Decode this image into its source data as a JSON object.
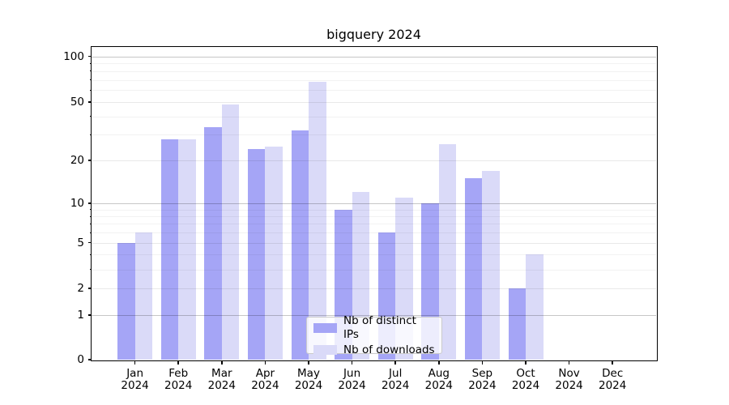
{
  "figure": {
    "background": "#ffffff"
  },
  "chart_data": {
    "type": "bar",
    "title": "bigquery 2024",
    "categories": [
      "Jan 2024",
      "Feb 2024",
      "Mar 2024",
      "Apr 2024",
      "May 2024",
      "Jun 2024",
      "Jul 2024",
      "Aug 2024",
      "Sep 2024",
      "Oct 2024",
      "Nov 2024",
      "Dec 2024"
    ],
    "series": [
      {
        "name": "Nb of distinct IPs",
        "color": "#a5a5f6",
        "values": [
          5,
          28,
          34,
          24,
          32,
          9,
          6,
          10,
          15,
          2,
          null,
          null
        ]
      },
      {
        "name": "Nb of downloads",
        "color": "#dadaf8",
        "values": [
          6,
          28,
          48,
          25,
          68,
          12,
          11,
          26,
          17,
          4,
          null,
          null
        ]
      }
    ],
    "xlabel": "",
    "ylabel": "",
    "yscale": "log1p",
    "ylim": [
      0,
      115
    ],
    "yticks": [
      0,
      1,
      2,
      5,
      10,
      20,
      50,
      100
    ],
    "ytick_labels": [
      "0",
      "1",
      "2",
      "5",
      "10",
      "20",
      "50",
      "100"
    ],
    "emphasized_yticks": [
      1,
      10,
      100
    ],
    "minor_yticks": [
      3,
      4,
      6,
      7,
      8,
      9,
      30,
      40,
      60,
      70,
      80,
      90
    ],
    "grid": true,
    "legend": {
      "location": "lower center",
      "items": [
        "Nb of distinct IPs",
        "Nb of downloads"
      ]
    },
    "grid_colors": {
      "emphasized": "rgba(0,0,0,0.22)",
      "major": "rgba(0,0,0,0.085)",
      "minor": "rgba(0,0,0,0.05)"
    }
  }
}
